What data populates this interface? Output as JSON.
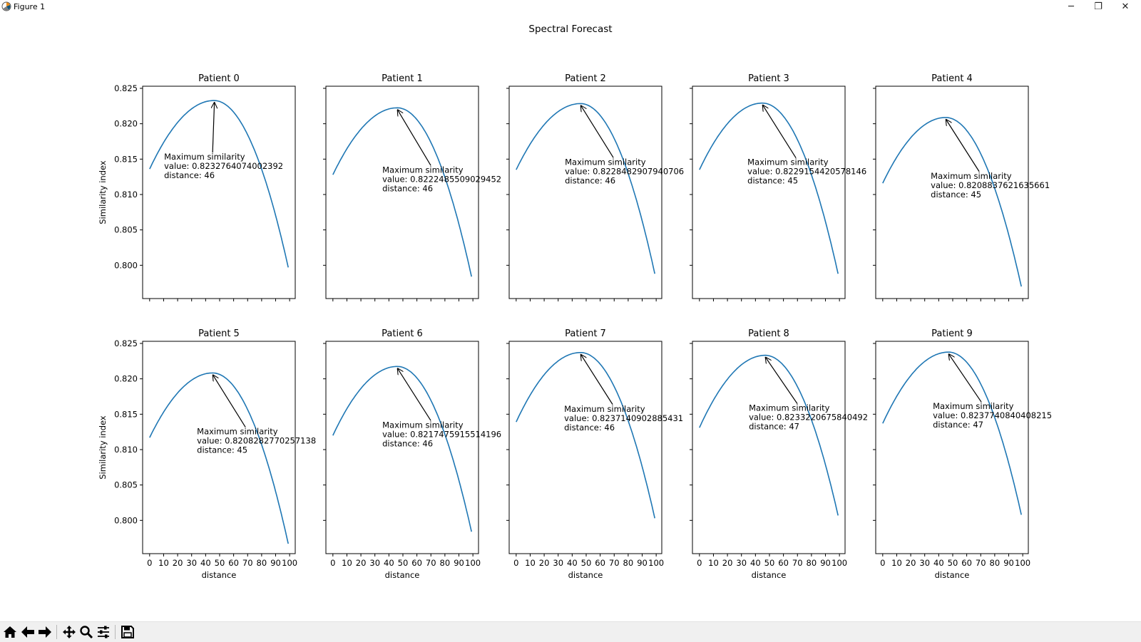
{
  "window": {
    "title": "Figure 1",
    "controls": {
      "minimize": "─",
      "restore": "❐",
      "close": "✕"
    }
  },
  "toolbar": {
    "buttons": [
      "home-icon",
      "back-arrow-icon",
      "forward-arrow-icon",
      "pan-icon",
      "zoom-icon",
      "configure-subplots-icon",
      "save-icon"
    ]
  },
  "colors": {
    "line": "#1f77b4",
    "axes": "#000000",
    "toolbar_bg": "#f0f0f0"
  },
  "chart_data": {
    "suptitle": "Spectral Forecast",
    "type": "line",
    "layout": "2x5 grid, shared axes",
    "xlabel": "distance",
    "ylabel": "Similarity index",
    "xlim": [
      -5,
      104
    ],
    "ylim": [
      0.7953,
      0.8253
    ],
    "xticks": [
      0,
      10,
      20,
      30,
      40,
      50,
      60,
      70,
      80,
      90,
      100
    ],
    "yticks": [
      0.8,
      0.805,
      0.81,
      0.815,
      0.82,
      0.825
    ],
    "ytick_labels": [
      "0.800",
      "0.805",
      "0.810",
      "0.815",
      "0.820",
      "0.825"
    ],
    "annotation_title": "Maximum similarity",
    "subplots": [
      {
        "title": "Patient 0",
        "start": 0.8136,
        "peak_x": 46,
        "peak_y": 0.8232764074002392,
        "end": 0.7997,
        "ann_value": "value: 0.8232764074002392",
        "ann_distance": "distance: 46"
      },
      {
        "title": "Patient 1",
        "start": 0.8128,
        "peak_x": 46,
        "peak_y": 0.8222485509029452,
        "end": 0.7984,
        "ann_value": "value: 0.8222485509029452",
        "ann_distance": "distance: 46"
      },
      {
        "title": "Patient 2",
        "start": 0.8135,
        "peak_x": 46,
        "peak_y": 0.8228482907940706,
        "end": 0.7988,
        "ann_value": "value: 0.8228482907940706",
        "ann_distance": "distance: 46"
      },
      {
        "title": "Patient 3",
        "start": 0.8135,
        "peak_x": 45,
        "peak_y": 0.8229154420578146,
        "end": 0.7988,
        "ann_value": "value: 0.8229154420578146",
        "ann_distance": "distance: 45"
      },
      {
        "title": "Patient 4",
        "start": 0.8116,
        "peak_x": 45,
        "peak_y": 0.8208837621635661,
        "end": 0.797,
        "ann_value": "value: 0.8208837621635661",
        "ann_distance": "distance: 45"
      },
      {
        "title": "Patient 5",
        "start": 0.8117,
        "peak_x": 45,
        "peak_y": 0.8208282770257138,
        "end": 0.7967,
        "ann_value": "value: 0.8208282770257138",
        "ann_distance": "distance: 45"
      },
      {
        "title": "Patient 6",
        "start": 0.812,
        "peak_x": 46,
        "peak_y": 0.8217475915514196,
        "end": 0.7984,
        "ann_value": "value: 0.8217475915514196",
        "ann_distance": "distance: 46"
      },
      {
        "title": "Patient 7",
        "start": 0.8139,
        "peak_x": 46,
        "peak_y": 0.8237140902885431,
        "end": 0.8003,
        "ann_value": "value: 0.8237140902885431",
        "ann_distance": "distance: 46"
      },
      {
        "title": "Patient 8",
        "start": 0.8131,
        "peak_x": 47,
        "peak_y": 0.8233220675840492,
        "end": 0.8007,
        "ann_value": "value: 0.8233220675840492",
        "ann_distance": "distance: 47"
      },
      {
        "title": "Patient 9",
        "start": 0.8137,
        "peak_x": 47,
        "peak_y": 0.8237740840408215,
        "end": 0.8008,
        "ann_value": "value: 0.8237740840408215",
        "ann_distance": "distance: 47"
      }
    ]
  }
}
